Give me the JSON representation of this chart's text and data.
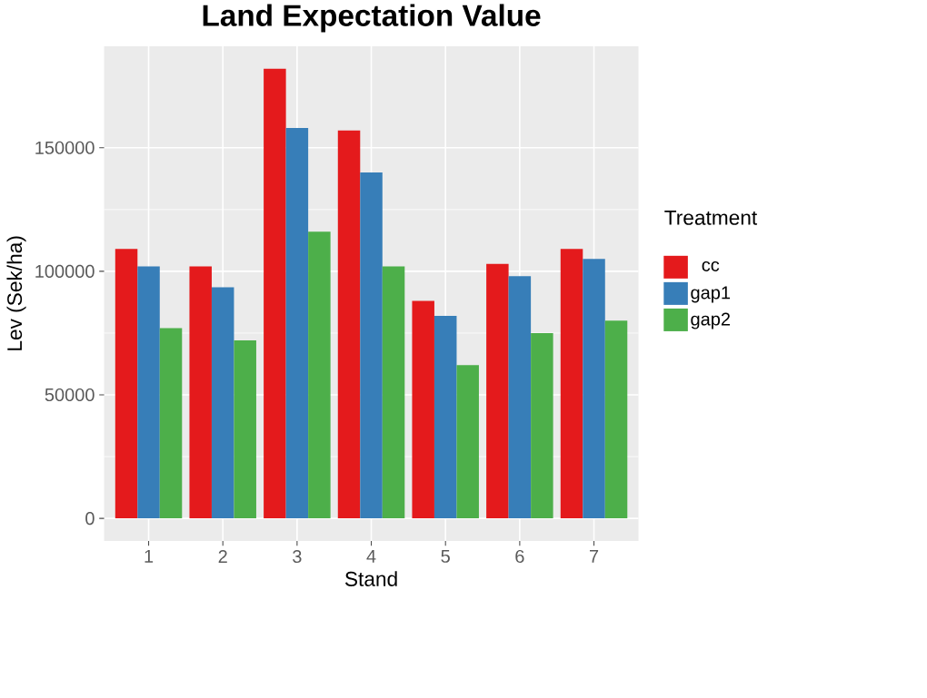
{
  "chart_data": {
    "type": "bar",
    "title": "Land Expectation Value",
    "xlabel": "Stand",
    "ylabel": "Lev (Sek/ha)",
    "legend_title": "Treatment",
    "categories": [
      "1",
      "2",
      "3",
      "4",
      "5",
      "6",
      "7"
    ],
    "series": [
      {
        "name": "cc",
        "color": "#e41a1c",
        "values": [
          109000,
          102000,
          182000,
          157000,
          88000,
          103000,
          109000
        ]
      },
      {
        "name": "gap1",
        "color": "#377eb8",
        "values": [
          102000,
          93500,
          158000,
          140000,
          82000,
          98000,
          105000
        ]
      },
      {
        "name": "gap2",
        "color": "#4daf4a",
        "values": [
          77000,
          72000,
          116000,
          102000,
          62000,
          75000,
          80000
        ]
      }
    ],
    "ylim": [
      -9100,
      191100
    ],
    "yticks": [
      0,
      50000,
      100000,
      150000
    ],
    "grid": true,
    "legend": "right"
  }
}
